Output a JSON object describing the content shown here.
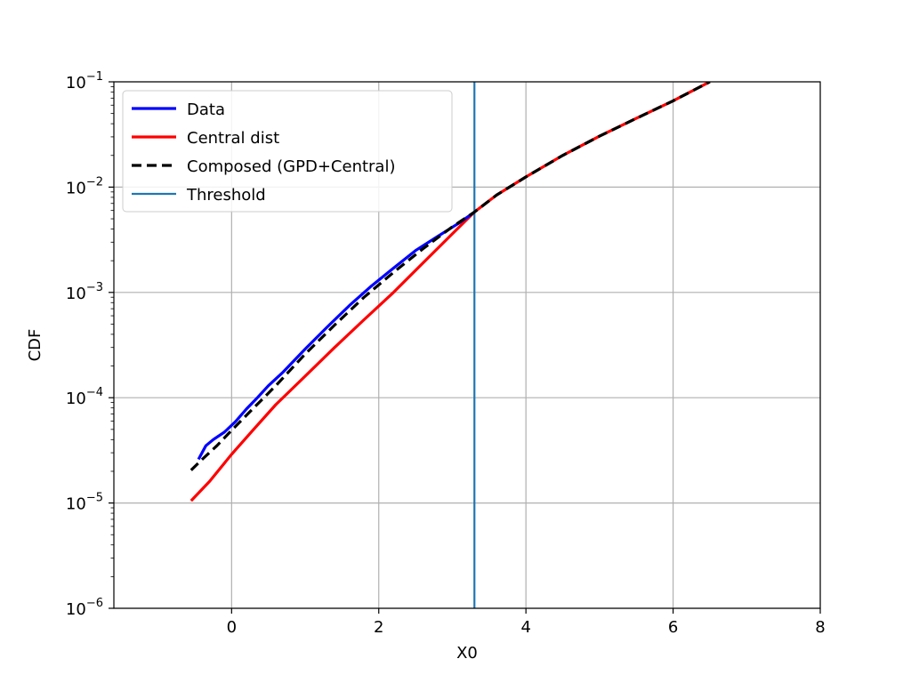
{
  "chart_data": {
    "type": "line",
    "title": "",
    "xlabel": "X0",
    "ylabel": "CDF",
    "xscale": "linear",
    "yscale": "log",
    "xlim": [
      -1.6,
      8
    ],
    "ylim": [
      1e-06,
      0.1
    ],
    "grid": true,
    "legend_location": "upper-left",
    "xticks": [
      0,
      2,
      4,
      6,
      8
    ],
    "xtick_labels": [
      "0",
      "2",
      "4",
      "6",
      "8"
    ],
    "yticks": [
      1e-06,
      1e-05,
      0.0001,
      0.001,
      0.01,
      0.1
    ],
    "ytick_labels": [
      {
        "base": "10",
        "exp": "−6"
      },
      {
        "base": "10",
        "exp": "−5"
      },
      {
        "base": "10",
        "exp": "−4"
      },
      {
        "base": "10",
        "exp": "−3"
      },
      {
        "base": "10",
        "exp": "−2"
      },
      {
        "base": "10",
        "exp": "−1"
      }
    ],
    "series": [
      {
        "name": "Data",
        "color": "#0000ff",
        "style": "solid",
        "x": [
          -0.45,
          -0.35,
          -0.25,
          -0.1,
          0.05,
          0.2,
          0.35,
          0.5,
          0.7,
          1.0,
          1.3,
          1.6,
          1.9,
          2.2,
          2.5,
          2.8,
          3.1,
          3.3
        ],
        "y": [
          2.6e-05,
          3.5e-05,
          4e-05,
          4.7e-05,
          5.9e-05,
          7.8e-05,
          0.0001,
          0.00013,
          0.000175,
          0.00029,
          0.00047,
          0.00075,
          0.00115,
          0.0017,
          0.0025,
          0.0034,
          0.0046,
          0.0058
        ]
      },
      {
        "name": "Central dist",
        "color": "#ff0000",
        "style": "solid",
        "x": [
          -0.55,
          -0.3,
          0.0,
          0.3,
          0.6,
          1.0,
          1.4,
          1.8,
          2.2,
          2.6,
          3.0,
          3.3,
          3.6,
          4.0,
          4.5,
          5.0,
          5.5,
          6.0,
          6.5
        ],
        "y": [
          1.05e-05,
          1.6e-05,
          2.9e-05,
          5e-05,
          8.6e-05,
          0.00016,
          0.0003,
          0.00055,
          0.001,
          0.0019,
          0.0036,
          0.0058,
          0.0084,
          0.0125,
          0.02,
          0.0305,
          0.045,
          0.066,
          0.1
        ]
      },
      {
        "name": "Composed (GPD+Central)",
        "color": "#000000",
        "style": "dashed",
        "x": [
          -0.55,
          -0.4,
          -0.2,
          0.0,
          0.3,
          0.6,
          1.0,
          1.4,
          1.8,
          2.2,
          2.6,
          3.0,
          3.3,
          3.6,
          4.0,
          4.5,
          5.0,
          5.5,
          6.0,
          6.5
        ],
        "y": [
          2.05e-05,
          2.6e-05,
          3.5e-05,
          4.9e-05,
          8e-05,
          0.00013,
          0.00026,
          0.00049,
          0.0009,
          0.00155,
          0.0026,
          0.0042,
          0.0058,
          0.0084,
          0.0125,
          0.02,
          0.0305,
          0.045,
          0.066,
          0.1
        ]
      },
      {
        "name": "Threshold",
        "color": "#1f77b4",
        "style": "vertical-line",
        "x_value": 3.3
      }
    ]
  }
}
